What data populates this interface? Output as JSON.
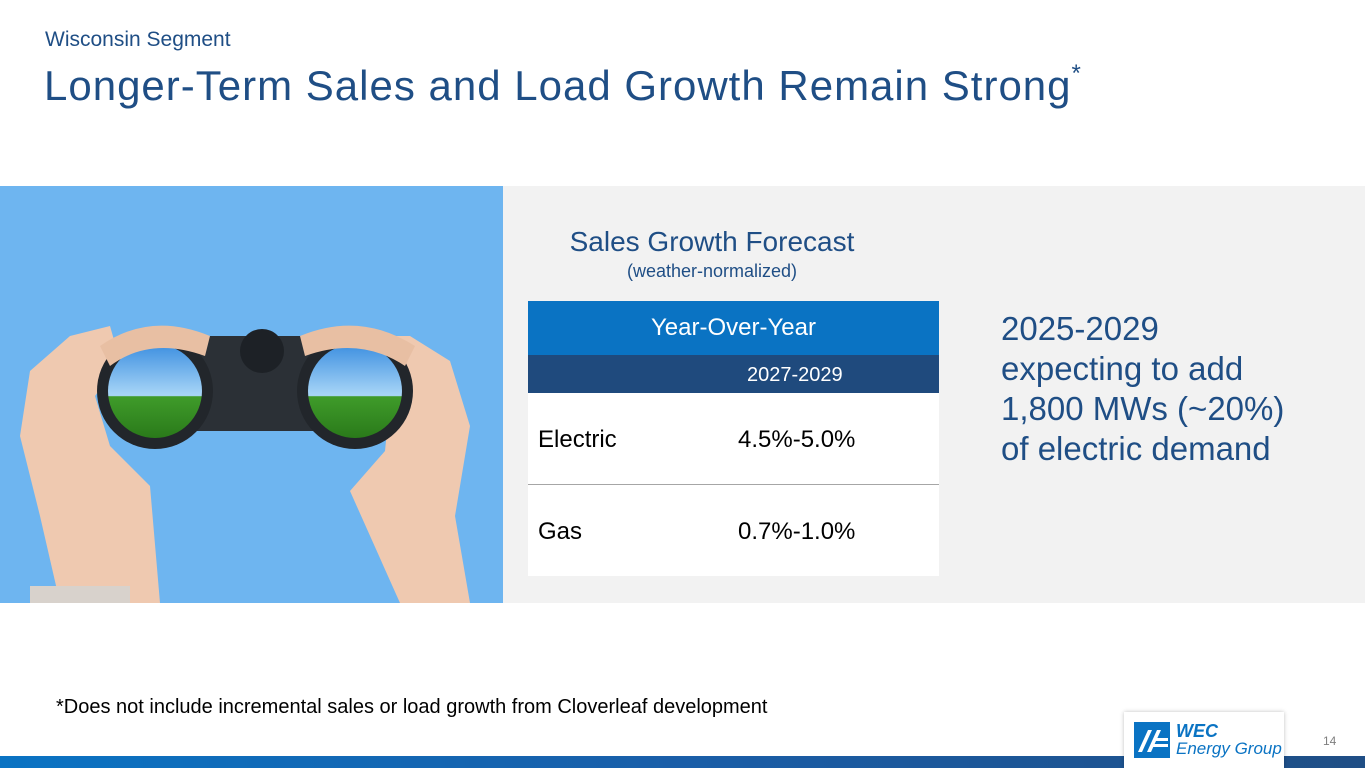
{
  "header": {
    "eyebrow": "Wisconsin Segment",
    "title": "Longer-Term Sales and Load Growth Remain Strong",
    "title_mark": "*"
  },
  "forecast": {
    "title": "Sales Growth Forecast",
    "subtitle": "(weather-normalized)",
    "table": {
      "header": "Year-Over-Year",
      "period": "2027-2029",
      "rows": [
        {
          "label": "Electric",
          "value": "4.5%-5.0%"
        },
        {
          "label": "Gas",
          "value": "0.7%-1.0%"
        }
      ]
    }
  },
  "callout": {
    "line1": "2025-2029",
    "line2": "expecting to add",
    "line3": "1,800 MWs (~20%)",
    "line4": "of electric demand"
  },
  "footnote": "*Does not include incremental sales or load growth from Cloverleaf development",
  "logo": {
    "line1": "WEC",
    "line2": "Energy Group"
  },
  "page_number": "14",
  "colors": {
    "brand_navy": "#1f4e85",
    "brand_blue": "#0a73c3",
    "panel_gray": "#f2f2f2",
    "sky_blue": "#6eb5f0"
  }
}
